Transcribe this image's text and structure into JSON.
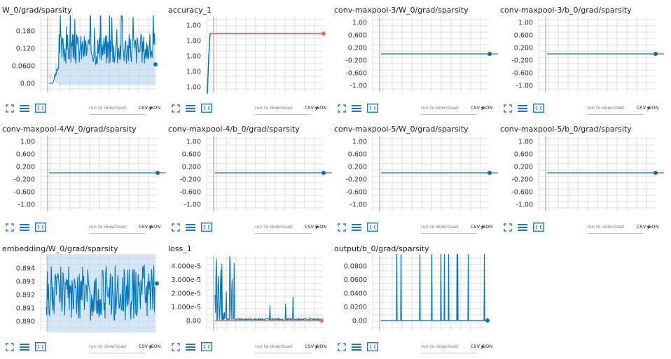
{
  "toolbar": {
    "dropdown_placeholder": "run to download",
    "csv_label": "CSV",
    "json_label": "JSON"
  },
  "colors": {
    "primary": "#0277bd",
    "secondary": "#e8715a",
    "band": "#b3d4ec",
    "grid": "#dddddd",
    "icon": "#1976d2"
  },
  "icons": [
    "expand-icon",
    "list-icon",
    "fit-domain-icon"
  ],
  "cards": [
    {
      "id": "w0",
      "title": "W_0/grad/sparsity",
      "yticks": [
        "0.180",
        "0.120",
        "0.0600",
        "0.00"
      ],
      "kind": "noisy_rise",
      "chart_data": {
        "type": "line",
        "ylim": [
          0,
          0.2
        ]
      }
    },
    {
      "id": "acc",
      "title": "accuracy_1",
      "yticks": [
        "1.00",
        "1.00",
        "1.00",
        "1.00",
        "1.00"
      ],
      "kind": "accuracy",
      "chart_data": {
        "type": "line",
        "series_count": 2
      }
    },
    {
      "id": "c3w",
      "title": "conv-maxpool-3/W_0/grad/sparsity",
      "yticks": [
        "1.00",
        "0.600",
        "0.200",
        "-0.200",
        "-0.600",
        "-1.00"
      ],
      "kind": "flat",
      "chart_data": {
        "type": "line",
        "value": 0,
        "ylim": [
          -1,
          1
        ]
      }
    },
    {
      "id": "c3b",
      "title": "conv-maxpool-3/b_0/grad/sparsity",
      "yticks": [
        "1.00",
        "0.600",
        "0.200",
        "-0.200",
        "-0.600",
        "-1.00"
      ],
      "kind": "flat",
      "chart_data": {
        "type": "line",
        "value": 0,
        "ylim": [
          -1,
          1
        ]
      }
    },
    {
      "id": "c4w",
      "title": "conv-maxpool-4/W_0/grad/sparsity",
      "yticks": [
        "1.00",
        "0.600",
        "0.200",
        "-0.200",
        "-0.600",
        "-1.00"
      ],
      "kind": "flat",
      "chart_data": {
        "type": "line",
        "value": 0,
        "ylim": [
          -1,
          1
        ]
      }
    },
    {
      "id": "c4b",
      "title": "conv-maxpool-4/b_0/grad/sparsity",
      "yticks": [
        "1.00",
        "0.600",
        "0.200",
        "-0.200",
        "-0.600",
        "-1.00"
      ],
      "kind": "flat",
      "chart_data": {
        "type": "line",
        "value": 0,
        "ylim": [
          -1,
          1
        ]
      }
    },
    {
      "id": "c5w",
      "title": "conv-maxpool-5/W_0/grad/sparsity",
      "yticks": [
        "1.00",
        "0.600",
        "0.200",
        "-0.200",
        "-0.600",
        "-1.00"
      ],
      "kind": "flat",
      "chart_data": {
        "type": "line",
        "value": 0,
        "ylim": [
          -1,
          1
        ]
      }
    },
    {
      "id": "c5b",
      "title": "conv-maxpool-5/b_0/grad/sparsity",
      "yticks": [
        "1.00",
        "0.600",
        "0.200",
        "-0.200",
        "-0.600",
        "-1.00"
      ],
      "kind": "flat",
      "chart_data": {
        "type": "line",
        "value": 0,
        "ylim": [
          -1,
          1
        ]
      }
    },
    {
      "id": "emb",
      "title": "embedding/W_0/grad/sparsity",
      "yticks": [
        "0.894",
        "0.893",
        "0.892",
        "0.891",
        "0.890"
      ],
      "kind": "noisy_band",
      "chart_data": {
        "type": "line",
        "ylim": [
          0.8895,
          0.8948
        ]
      }
    },
    {
      "id": "loss",
      "title": "loss_1",
      "yticks": [
        "4.000e-5",
        "3.000e-5",
        "2.000e-5",
        "1.000e-5",
        "0.00"
      ],
      "kind": "loss",
      "chart_data": {
        "type": "line",
        "ylim": [
          0,
          5e-05
        ]
      }
    },
    {
      "id": "out",
      "title": "output/b_0/grad/sparsity",
      "yticks": [
        "0.0800",
        "0.0600",
        "0.0400",
        "0.0200",
        "0.00"
      ],
      "kind": "spikes",
      "chart_data": {
        "type": "line",
        "ylim": [
          0,
          0.085
        ]
      }
    }
  ]
}
